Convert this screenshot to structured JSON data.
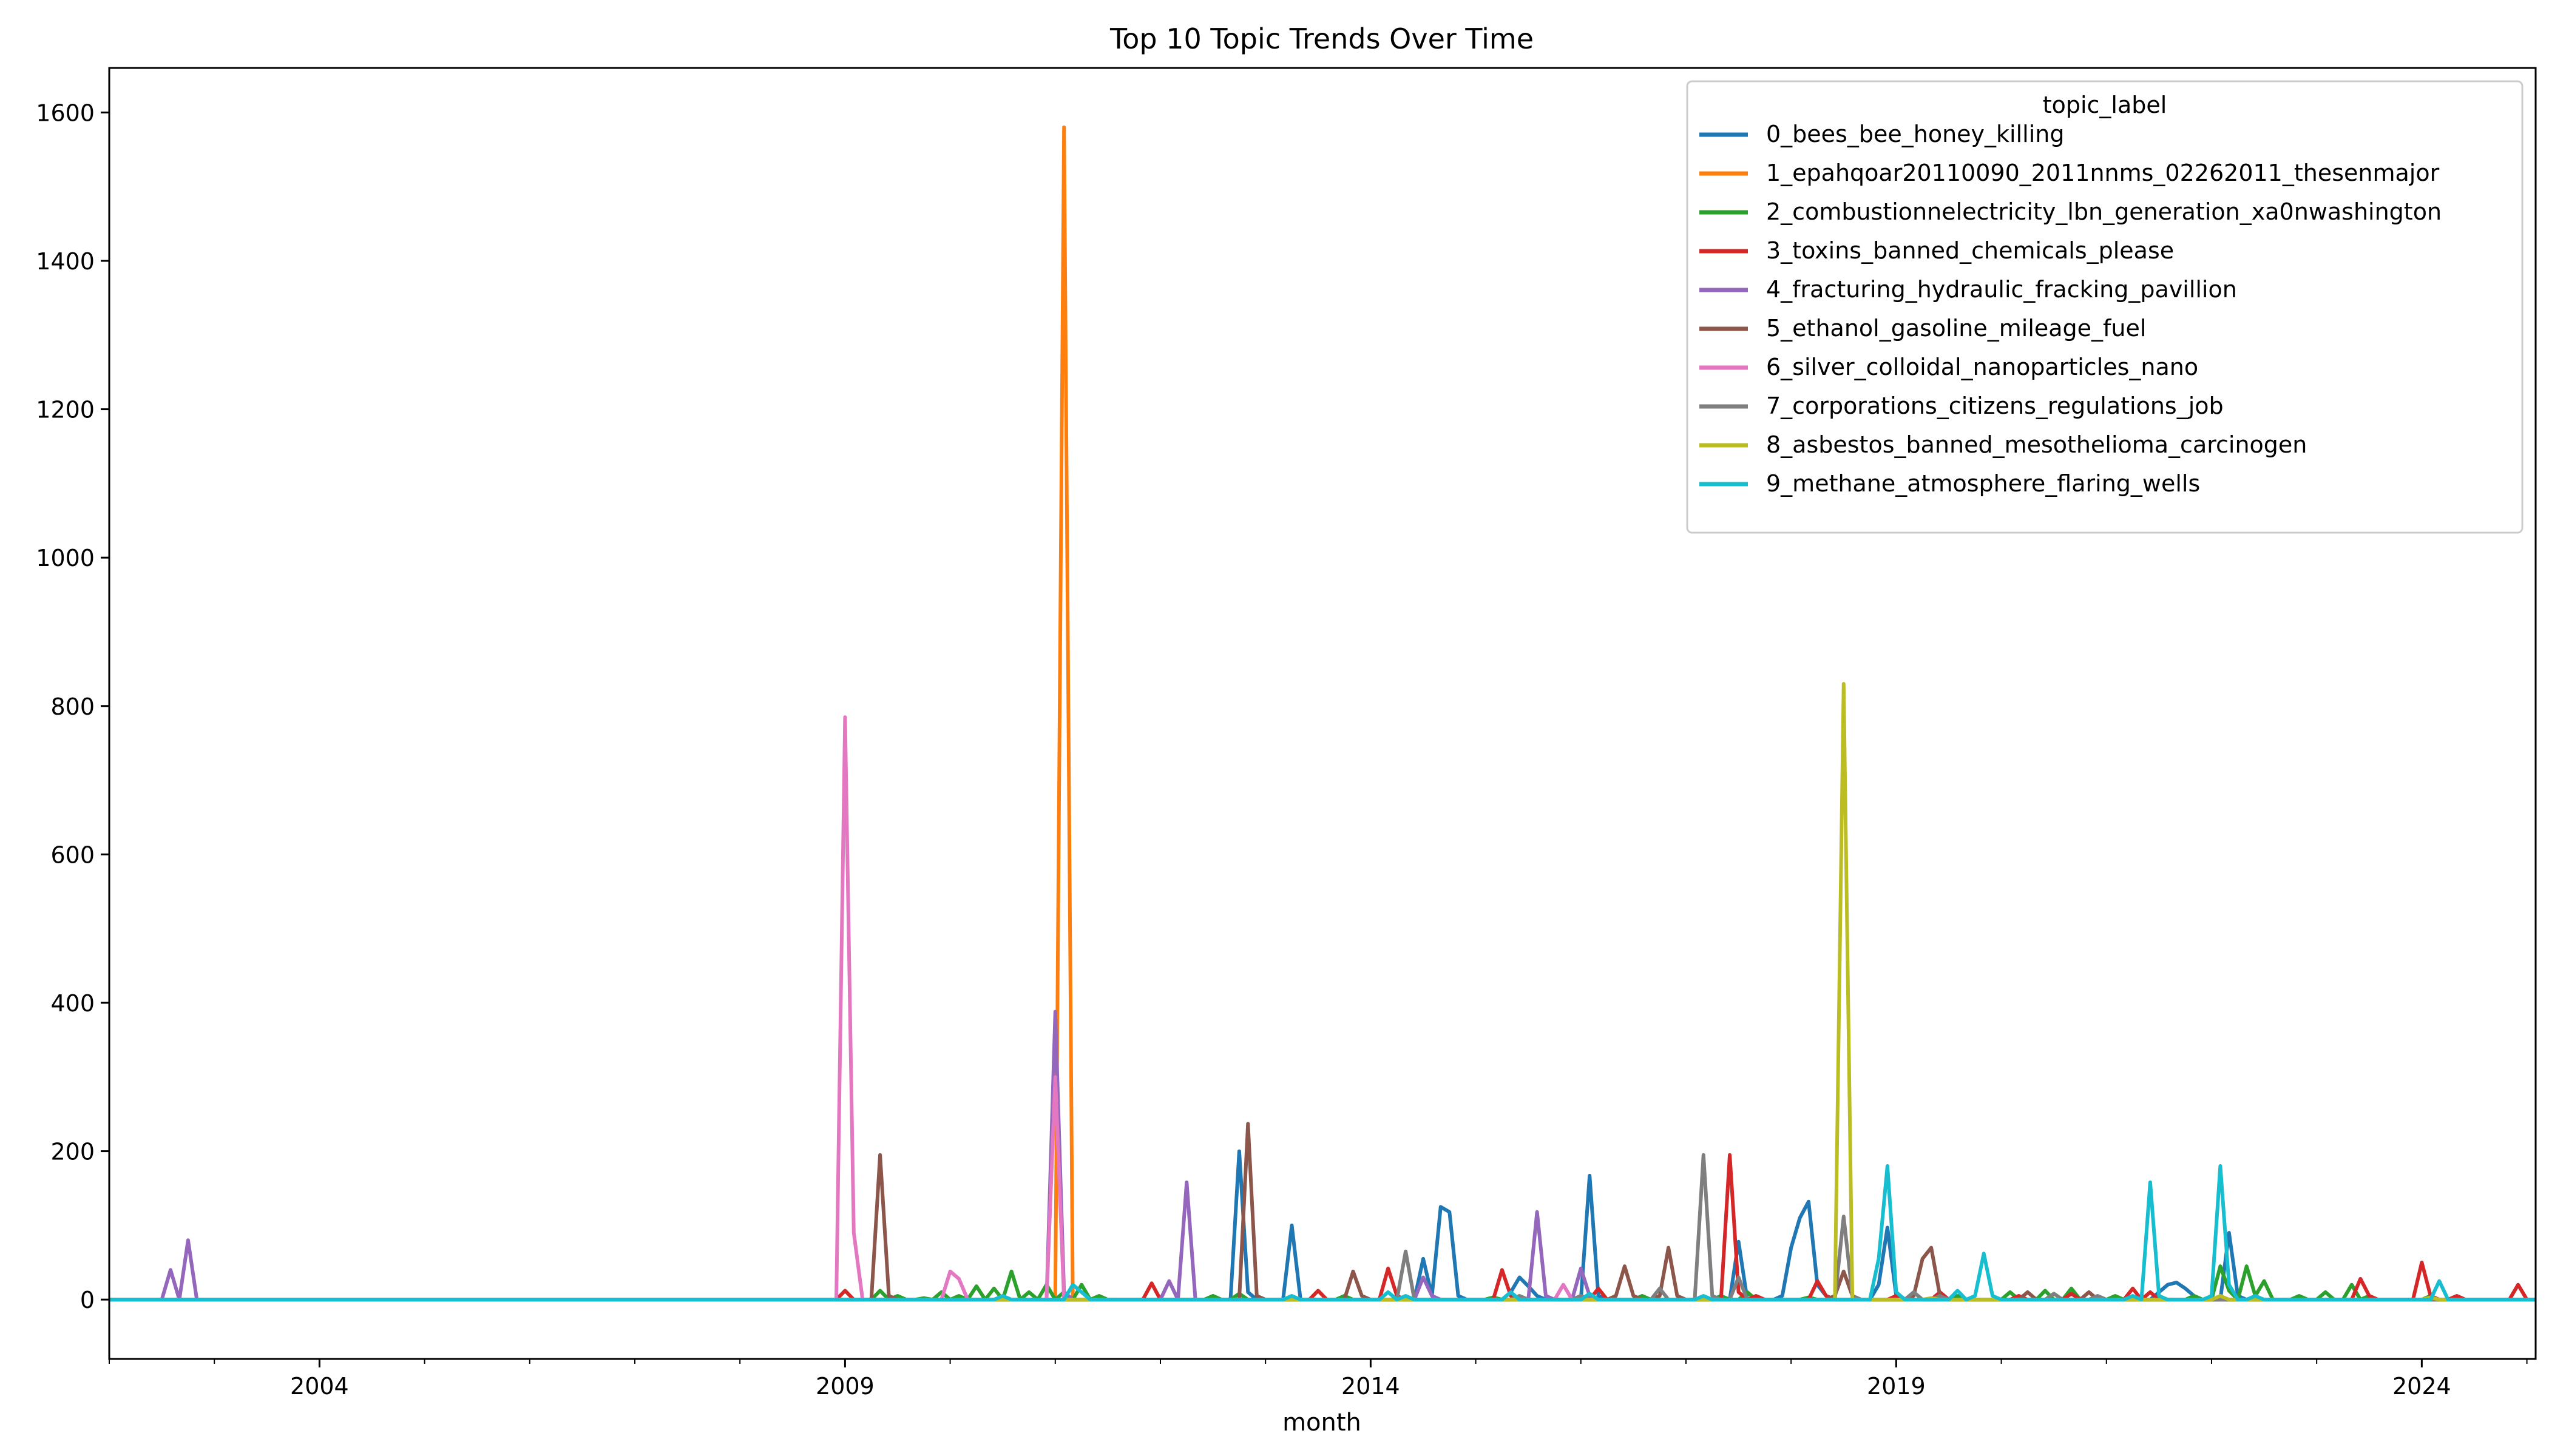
{
  "chart_data": {
    "type": "line",
    "title": "Top 10 Topic Trends Over Time",
    "xlabel": "month",
    "ylabel": "",
    "xlim": [
      "2002-01",
      "2025-02"
    ],
    "ylim": [
      -80,
      1660
    ],
    "x_ticks": [
      {
        "label": "2004",
        "value": "2004-01"
      },
      {
        "label": "2009",
        "value": "2009-01"
      },
      {
        "label": "2014",
        "value": "2014-01"
      },
      {
        "label": "2019",
        "value": "2019-01"
      },
      {
        "label": "2024",
        "value": "2024-01"
      }
    ],
    "y_ticks": [
      0,
      200,
      400,
      600,
      800,
      1000,
      1200,
      1400,
      1600
    ],
    "grid": false,
    "legend": {
      "title": "topic_label",
      "position": "top-right"
    },
    "series": [
      {
        "name": "0_bees_bee_honey_killing",
        "color": "#1f77b4",
        "points": [
          [
            "2012-09",
            0
          ],
          [
            "2012-10",
            200
          ],
          [
            "2012-11",
            10
          ],
          [
            "2013-03",
            0
          ],
          [
            "2013-04",
            100
          ],
          [
            "2013-05",
            0
          ],
          [
            "2014-06",
            0
          ],
          [
            "2014-07",
            55
          ],
          [
            "2014-08",
            5
          ],
          [
            "2014-09",
            125
          ],
          [
            "2014-10",
            118
          ],
          [
            "2014-11",
            5
          ],
          [
            "2015-05",
            10
          ],
          [
            "2015-06",
            30
          ],
          [
            "2015-07",
            18
          ],
          [
            "2015-08",
            5
          ],
          [
            "2016-01",
            0
          ],
          [
            "2016-02",
            167
          ],
          [
            "2016-03",
            5
          ],
          [
            "2017-06",
            0
          ],
          [
            "2017-07",
            78
          ],
          [
            "2017-08",
            0
          ],
          [
            "2017-12",
            5
          ],
          [
            "2018-01",
            70
          ],
          [
            "2018-02",
            110
          ],
          [
            "2018-03",
            132
          ],
          [
            "2018-04",
            20
          ],
          [
            "2018-05",
            5
          ],
          [
            "2018-11",
            20
          ],
          [
            "2018-12",
            97
          ],
          [
            "2019-01",
            5
          ],
          [
            "2021-07",
            10
          ],
          [
            "2021-08",
            20
          ],
          [
            "2021-09",
            23
          ],
          [
            "2021-10",
            15
          ],
          [
            "2021-11",
            5
          ],
          [
            "2022-02",
            0
          ],
          [
            "2022-03",
            90
          ],
          [
            "2022-04",
            5
          ]
        ]
      },
      {
        "name": "1_epahqoar20110090_2011nnms_02262011_thesenmajor",
        "color": "#ff7f0e",
        "points": [
          [
            "2011-01",
            0
          ],
          [
            "2011-02",
            1580
          ],
          [
            "2011-03",
            0
          ]
        ]
      },
      {
        "name": "2_combustionnelectricity_lbn_generation_xa0nwashington",
        "color": "#2ca02c",
        "points": [
          [
            "2009-03",
            0
          ],
          [
            "2009-05",
            12
          ],
          [
            "2009-07",
            5
          ],
          [
            "2009-10",
            2
          ],
          [
            "2009-12",
            10
          ],
          [
            "2010-02",
            5
          ],
          [
            "2010-04",
            18
          ],
          [
            "2010-06",
            15
          ],
          [
            "2010-08",
            38
          ],
          [
            "2010-10",
            10
          ],
          [
            "2010-12",
            20
          ],
          [
            "2011-02",
            10
          ],
          [
            "2011-04",
            20
          ],
          [
            "2011-06",
            5
          ],
          [
            "2011-09",
            0
          ],
          [
            "2012-07",
            5
          ],
          [
            "2012-10",
            8
          ],
          [
            "2013-05",
            0
          ],
          [
            "2013-10",
            5
          ],
          [
            "2014-01",
            0
          ],
          [
            "2015-03",
            3
          ],
          [
            "2016-08",
            5
          ],
          [
            "2017-05",
            5
          ],
          [
            "2017-08",
            10
          ],
          [
            "2018-03",
            3
          ],
          [
            "2019-08",
            5
          ],
          [
            "2020-02",
            10
          ],
          [
            "2020-06",
            12
          ],
          [
            "2020-09",
            15
          ],
          [
            "2021-02",
            5
          ],
          [
            "2021-11",
            5
          ],
          [
            "2022-02",
            45
          ],
          [
            "2022-03",
            12
          ],
          [
            "2022-05",
            45
          ],
          [
            "2022-06",
            5
          ],
          [
            "2022-07",
            25
          ],
          [
            "2022-08",
            0
          ],
          [
            "2022-11",
            5
          ],
          [
            "2023-02",
            10
          ],
          [
            "2023-05",
            20
          ],
          [
            "2023-07",
            5
          ],
          [
            "2024-02",
            5
          ],
          [
            "2025-01",
            0
          ]
        ]
      },
      {
        "name": "3_toxins_banned_chemicals_please",
        "color": "#d62728",
        "points": [
          [
            "2008-12",
            0
          ],
          [
            "2009-01",
            12
          ],
          [
            "2009-02",
            0
          ],
          [
            "2011-11",
            0
          ],
          [
            "2011-12",
            22
          ],
          [
            "2012-01",
            0
          ],
          [
            "2013-06",
            0
          ],
          [
            "2013-07",
            12
          ],
          [
            "2013-08",
            0
          ],
          [
            "2014-02",
            0
          ],
          [
            "2014-03",
            42
          ],
          [
            "2014-04",
            5
          ],
          [
            "2015-03",
            0
          ],
          [
            "2015-04",
            40
          ],
          [
            "2015-05",
            5
          ],
          [
            "2016-01",
            5
          ],
          [
            "2016-03",
            15
          ],
          [
            "2016-05",
            0
          ],
          [
            "2017-05",
            0
          ],
          [
            "2017-06",
            195
          ],
          [
            "2017-07",
            10
          ],
          [
            "2017-09",
            5
          ],
          [
            "2018-03",
            0
          ],
          [
            "2018-04",
            25
          ],
          [
            "2018-05",
            5
          ],
          [
            "2019-01",
            5
          ],
          [
            "2019-06",
            10
          ],
          [
            "2020-03",
            5
          ],
          [
            "2020-09",
            8
          ],
          [
            "2021-04",
            15
          ],
          [
            "2021-06",
            10
          ],
          [
            "2023-05",
            0
          ],
          [
            "2023-06",
            28
          ],
          [
            "2023-07",
            5
          ],
          [
            "2023-12",
            0
          ],
          [
            "2024-01",
            50
          ],
          [
            "2024-02",
            5
          ],
          [
            "2024-05",
            5
          ],
          [
            "2024-10",
            0
          ],
          [
            "2024-12",
            20
          ],
          [
            "2025-01",
            0
          ]
        ]
      },
      {
        "name": "4_fracturing_hydraulic_fracking_pavillion",
        "color": "#9467bd",
        "points": [
          [
            "2002-01",
            0
          ],
          [
            "2002-06",
            0
          ],
          [
            "2002-08",
            40
          ],
          [
            "2002-10",
            80
          ],
          [
            "2002-11",
            0
          ],
          [
            "2010-12",
            0
          ],
          [
            "2011-01",
            388
          ],
          [
            "2011-02",
            10
          ],
          [
            "2011-03",
            0
          ],
          [
            "2012-01",
            0
          ],
          [
            "2012-02",
            25
          ],
          [
            "2012-04",
            158
          ],
          [
            "2012-05",
            0
          ],
          [
            "2014-06",
            0
          ],
          [
            "2014-07",
            30
          ],
          [
            "2014-08",
            5
          ],
          [
            "2015-07",
            0
          ],
          [
            "2015-08",
            118
          ],
          [
            "2015-09",
            5
          ],
          [
            "2015-11",
            0
          ],
          [
            "2016-01",
            42
          ],
          [
            "2016-02",
            5
          ],
          [
            "2016-03",
            0
          ]
        ]
      },
      {
        "name": "5_ethanol_gasoline_mileage_fuel",
        "color": "#8c564b",
        "points": [
          [
            "2009-03",
            0
          ],
          [
            "2009-05",
            195
          ],
          [
            "2009-06",
            5
          ],
          [
            "2009-07",
            0
          ],
          [
            "2012-09",
            0
          ],
          [
            "2012-11",
            237
          ],
          [
            "2012-12",
            5
          ],
          [
            "2013-01",
            0
          ],
          [
            "2013-09",
            0
          ],
          [
            "2013-11",
            38
          ],
          [
            "2013-12",
            5
          ],
          [
            "2016-05",
            5
          ],
          [
            "2016-06",
            45
          ],
          [
            "2016-07",
            5
          ],
          [
            "2016-10",
            5
          ],
          [
            "2016-11",
            70
          ],
          [
            "2016-12",
            5
          ],
          [
            "2018-06",
            5
          ],
          [
            "2018-07",
            38
          ],
          [
            "2018-08",
            5
          ],
          [
            "2019-03",
            5
          ],
          [
            "2019-04",
            55
          ],
          [
            "2019-05",
            70
          ],
          [
            "2019-06",
            5
          ],
          [
            "2020-02",
            0
          ],
          [
            "2020-04",
            10
          ],
          [
            "2020-06",
            0
          ],
          [
            "2020-09",
            0
          ],
          [
            "2020-11",
            10
          ],
          [
            "2021-01",
            0
          ]
        ]
      },
      {
        "name": "6_silver_colloidal_nanoparticles_nano",
        "color": "#e377c2",
        "points": [
          [
            "2008-11",
            0
          ],
          [
            "2008-12",
            0
          ],
          [
            "2009-01",
            785
          ],
          [
            "2009-02",
            90
          ],
          [
            "2009-03",
            0
          ],
          [
            "2009-12",
            0
          ],
          [
            "2010-01",
            38
          ],
          [
            "2010-02",
            28
          ],
          [
            "2010-03",
            0
          ],
          [
            "2010-12",
            0
          ],
          [
            "2011-01",
            300
          ],
          [
            "2011-02",
            0
          ],
          [
            "2015-10",
            0
          ],
          [
            "2015-11",
            20
          ],
          [
            "2015-12",
            0
          ]
        ]
      },
      {
        "name": "7_corporations_citizens_regulations_job",
        "color": "#7f7f7f",
        "points": [
          [
            "2014-04",
            0
          ],
          [
            "2014-05",
            65
          ],
          [
            "2014-06",
            0
          ],
          [
            "2015-06",
            5
          ],
          [
            "2016-01",
            5
          ],
          [
            "2016-09",
            0
          ],
          [
            "2016-10",
            15
          ],
          [
            "2016-12",
            0
          ],
          [
            "2017-01",
            0
          ],
          [
            "2017-03",
            195
          ],
          [
            "2017-04",
            5
          ],
          [
            "2017-06",
            0
          ],
          [
            "2017-07",
            30
          ],
          [
            "2017-08",
            0
          ],
          [
            "2018-06",
            0
          ],
          [
            "2018-07",
            112
          ],
          [
            "2018-08",
            5
          ],
          [
            "2019-01",
            0
          ],
          [
            "2019-03",
            10
          ],
          [
            "2019-06",
            5
          ],
          [
            "2020-07",
            8
          ],
          [
            "2020-12",
            5
          ]
        ]
      },
      {
        "name": "8_asbestos_banned_mesothelioma_carcinogen",
        "color": "#bcbd22",
        "points": [
          [
            "2018-05",
            0
          ],
          [
            "2018-07",
            830
          ],
          [
            "2018-08",
            0
          ],
          [
            "2019-01",
            0
          ],
          [
            "2019-05",
            2
          ],
          [
            "2022-02",
            5
          ],
          [
            "2024-02",
            3
          ]
        ]
      },
      {
        "name": "9_methane_atmosphere_flaring_wells",
        "color": "#17becf",
        "points": [
          [
            "2002-01",
            0
          ],
          [
            "2010-06",
            0
          ],
          [
            "2010-07",
            5
          ],
          [
            "2011-01",
            0
          ],
          [
            "2011-03",
            20
          ],
          [
            "2011-04",
            10
          ],
          [
            "2011-06",
            0
          ],
          [
            "2013-04",
            5
          ],
          [
            "2014-03",
            10
          ],
          [
            "2014-05",
            5
          ],
          [
            "2015-05",
            10
          ],
          [
            "2016-02",
            8
          ],
          [
            "2017-03",
            5
          ],
          [
            "2018-10",
            0
          ],
          [
            "2018-11",
            55
          ],
          [
            "2018-12",
            180
          ],
          [
            "2019-01",
            10
          ],
          [
            "2019-06",
            0
          ],
          [
            "2019-08",
            12
          ],
          [
            "2019-10",
            5
          ],
          [
            "2019-11",
            62
          ],
          [
            "2019-12",
            5
          ],
          [
            "2021-04",
            5
          ],
          [
            "2021-06",
            158
          ],
          [
            "2021-07",
            5
          ],
          [
            "2021-11",
            0
          ],
          [
            "2022-01",
            5
          ],
          [
            "2022-02",
            180
          ],
          [
            "2022-03",
            20
          ],
          [
            "2022-04",
            0
          ],
          [
            "2022-06",
            5
          ],
          [
            "2024-02",
            0
          ],
          [
            "2024-03",
            25
          ],
          [
            "2024-04",
            0
          ],
          [
            "2025-02",
            0
          ]
        ]
      }
    ]
  }
}
